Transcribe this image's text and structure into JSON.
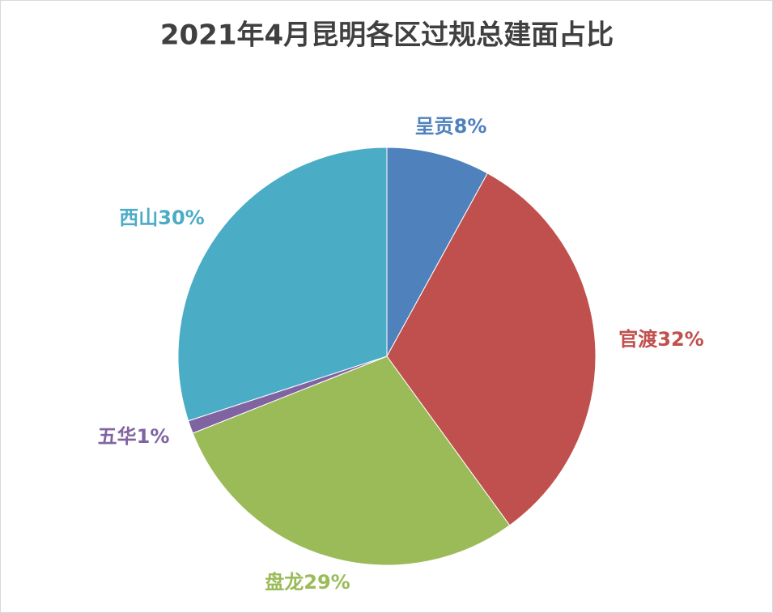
{
  "chart_data": {
    "type": "pie",
    "title": "2021年4月昆明各区过规总建面占比",
    "categories": [
      "呈贡",
      "官渡",
      "盘龙",
      "五华",
      "西山"
    ],
    "values": [
      8,
      32,
      29,
      1,
      30
    ],
    "value_labels": [
      "8%",
      "32%",
      "29%",
      "1%",
      "30%"
    ],
    "colors": [
      "#4f81bd",
      "#c0504d",
      "#9bbb59",
      "#8064a2",
      "#4bacc6"
    ]
  }
}
